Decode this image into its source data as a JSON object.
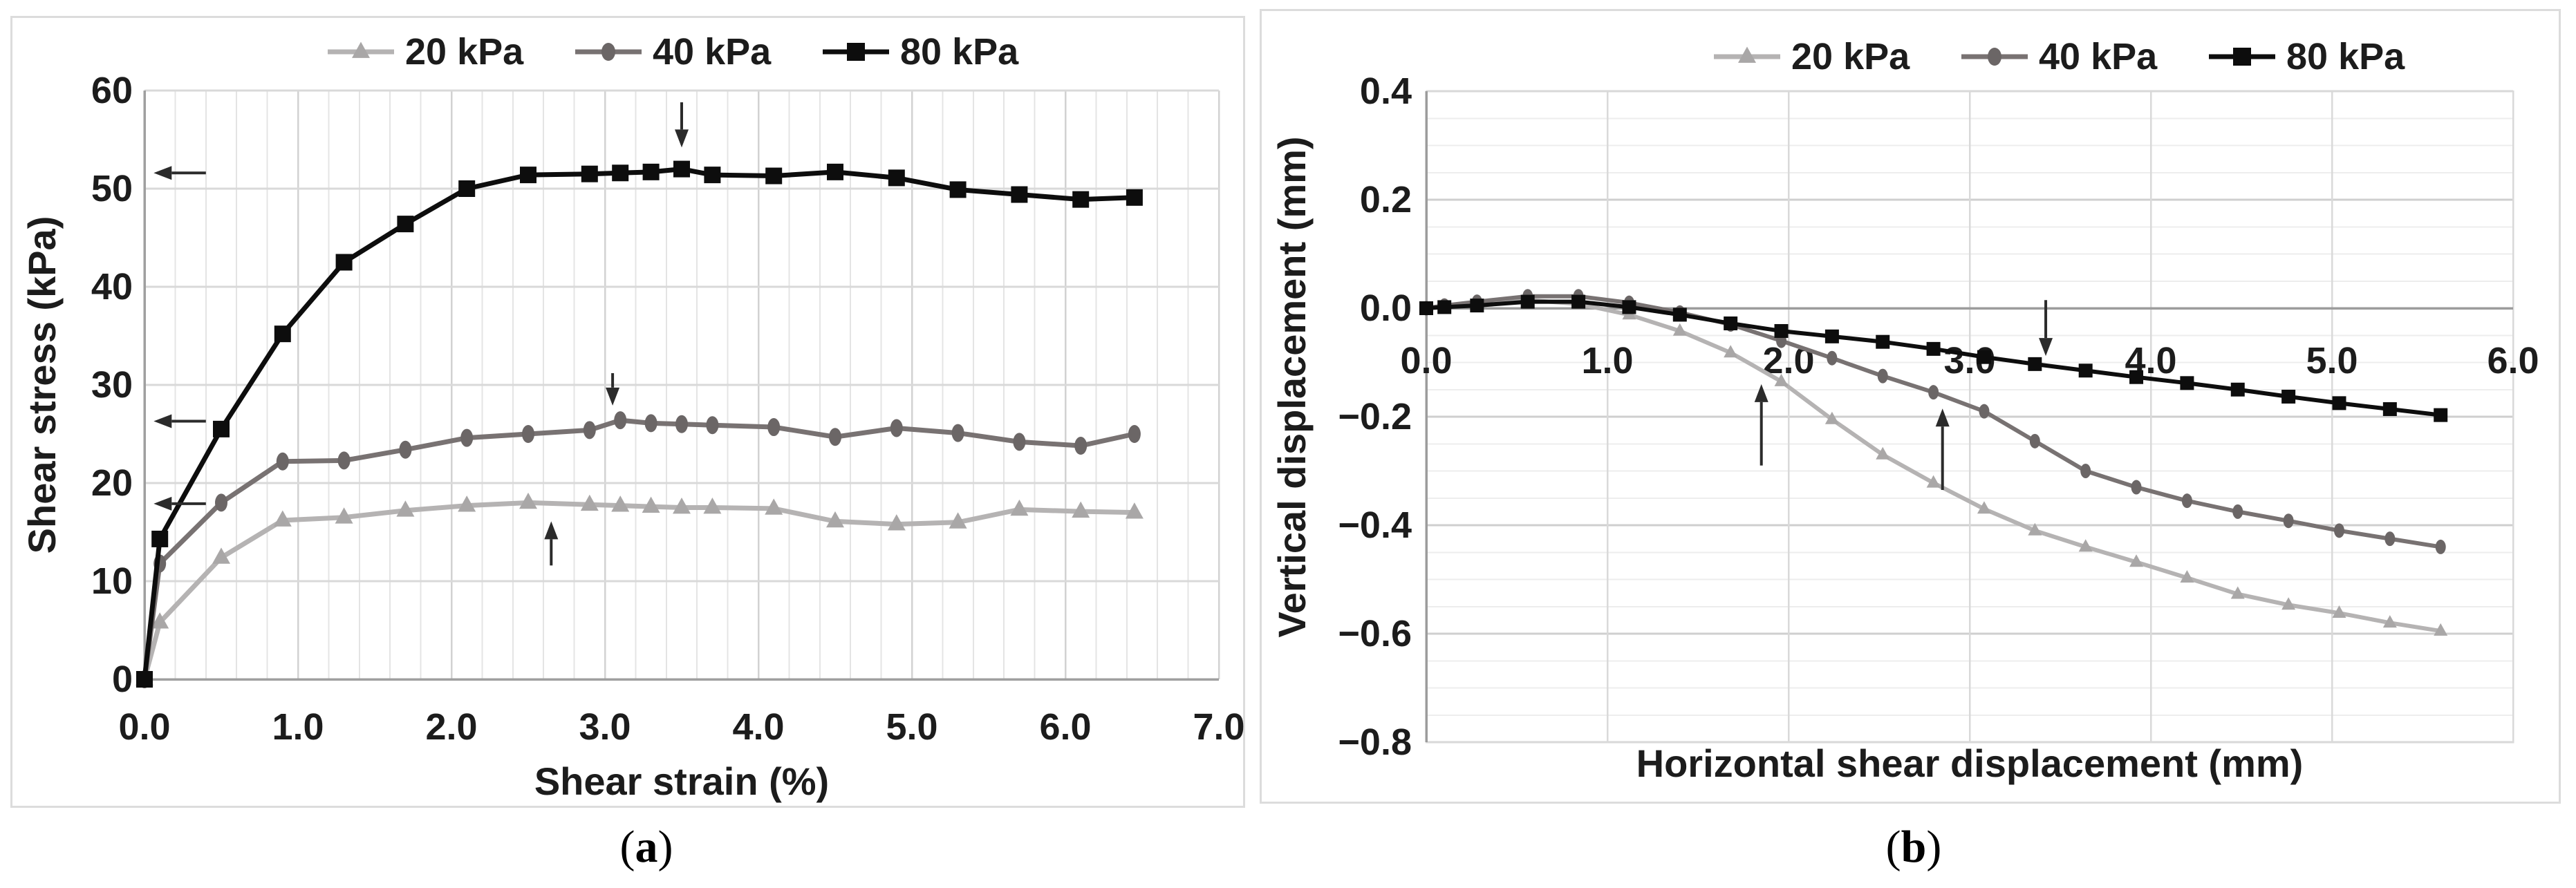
{
  "figure": {
    "captions": [
      "a",
      "b"
    ]
  },
  "chart_data": [
    {
      "id": "a",
      "type": "line",
      "title": "",
      "xlabel": "Shear strain (%)",
      "ylabel": "Shear stress (kPa)",
      "xlim": [
        0,
        7
      ],
      "ylim": [
        0,
        60
      ],
      "xtick_values": [
        0,
        1,
        2,
        3,
        4,
        5,
        6,
        7
      ],
      "xtick_labels": [
        "0.0",
        "1.0",
        "2.0",
        "3.0",
        "4.0",
        "5.0",
        "6.0",
        "7.0"
      ],
      "ytick_values": [
        0,
        10,
        20,
        30,
        40,
        50,
        60
      ],
      "ytick_labels": [
        "0",
        "10",
        "20",
        "30",
        "40",
        "50",
        "60"
      ],
      "x_minor_step": 0.2,
      "y_major_step": 10,
      "grid": true,
      "legend_position": "top",
      "x": [
        0,
        0.1,
        0.5,
        0.9,
        1.3,
        1.7,
        2.1,
        2.5,
        2.9,
        3.1,
        3.3,
        3.5,
        3.7,
        4.1,
        4.5,
        4.9,
        5.3,
        5.7,
        6.1,
        6.45
      ],
      "series": [
        {
          "name": "20 kPa",
          "marker": "triangle",
          "line_color": "#b5b3b3",
          "marker_color": "#a9a7a7",
          "y": [
            0,
            5.8,
            12.4,
            16.2,
            16.5,
            17.2,
            17.7,
            18.0,
            17.8,
            17.7,
            17.6,
            17.5,
            17.5,
            17.4,
            16.1,
            15.8,
            16.0,
            17.3,
            17.1,
            17.0
          ]
        },
        {
          "name": "40 kPa",
          "marker": "circle",
          "line_color": "#787272",
          "marker_color": "#6b6666",
          "y": [
            0,
            11.8,
            18.0,
            22.2,
            22.3,
            23.4,
            24.6,
            25.0,
            25.4,
            26.4,
            26.1,
            26.0,
            25.9,
            25.7,
            24.7,
            25.6,
            25.1,
            24.2,
            23.8,
            25.0
          ]
        },
        {
          "name": "80 kPa",
          "marker": "square",
          "line_color": "#0d0d0d",
          "marker_color": "#0d0d0d",
          "y": [
            0,
            14.3,
            25.5,
            35.2,
            42.5,
            46.4,
            50.0,
            51.4,
            51.5,
            51.6,
            51.7,
            52.0,
            51.4,
            51.3,
            51.7,
            51.1,
            49.9,
            49.4,
            48.9,
            49.1
          ]
        }
      ],
      "annotations": [
        {
          "name": "peak-arrow-80kpa-axis",
          "x1": 0.4,
          "y1": 51.6,
          "x2": 0.06,
          "y2": 51.6
        },
        {
          "name": "peak-arrow-40kpa-axis",
          "x1": 0.4,
          "y1": 26.3,
          "x2": 0.06,
          "y2": 26.3
        },
        {
          "name": "peak-arrow-20kpa-axis",
          "x1": 0.4,
          "y1": 17.9,
          "x2": 0.06,
          "y2": 17.9
        },
        {
          "name": "peak-arrow-80kpa-curve",
          "x1": 3.5,
          "y1": 58.8,
          "x2": 3.5,
          "y2": 54.2
        },
        {
          "name": "peak-arrow-40kpa-curve",
          "x1": 3.05,
          "y1": 31.2,
          "x2": 3.05,
          "y2": 27.9
        },
        {
          "name": "peak-arrow-20kpa-curve",
          "x1": 2.65,
          "y1": 11.6,
          "x2": 2.65,
          "y2": 16.1
        }
      ]
    },
    {
      "id": "b",
      "type": "line",
      "title": "",
      "xlabel": "Horizontal shear displacement (mm)",
      "ylabel": "Vertical displacement (mm)",
      "xlim": [
        0,
        6
      ],
      "ylim": [
        -0.8,
        0.4
      ],
      "xtick_values": [
        0,
        1,
        2,
        3,
        4,
        5,
        6
      ],
      "xtick_labels": [
        "0.0",
        "1.0",
        "2.0",
        "3.0",
        "4.0",
        "5.0",
        "6.0"
      ],
      "ytick_values": [
        0.4,
        0.2,
        0.0,
        -0.2,
        -0.4,
        -0.6,
        -0.8
      ],
      "ytick_labels": [
        "0.4",
        "0.2",
        "0.0",
        "−0.2",
        "−0.4",
        "−0.6",
        "−0.8"
      ],
      "y_minor_step": 0.05,
      "y_major_step": 0.2,
      "grid": true,
      "legend_position": "top",
      "x": [
        0,
        0.1,
        0.28,
        0.56,
        0.84,
        1.12,
        1.4,
        1.68,
        1.96,
        2.24,
        2.52,
        2.8,
        3.08,
        3.36,
        3.64,
        3.92,
        4.2,
        4.48,
        4.76,
        5.04,
        5.32,
        5.6
      ],
      "series": [
        {
          "name": "20 kPa",
          "marker": "triangle",
          "line_color": "#b5b3b3",
          "marker_color": "#a9a7a7",
          "y": [
            0,
            0.003,
            0.008,
            0.015,
            0.008,
            -0.012,
            -0.042,
            -0.082,
            -0.135,
            -0.205,
            -0.27,
            -0.322,
            -0.37,
            -0.41,
            -0.44,
            -0.468,
            -0.497,
            -0.527,
            -0.547,
            -0.562,
            -0.58,
            -0.595
          ]
        },
        {
          "name": "40 kPa",
          "marker": "circle",
          "line_color": "#787272",
          "marker_color": "#6b6666",
          "y": [
            0,
            0.005,
            0.012,
            0.022,
            0.022,
            0.01,
            -0.008,
            -0.03,
            -0.06,
            -0.092,
            -0.125,
            -0.155,
            -0.19,
            -0.245,
            -0.3,
            -0.33,
            -0.355,
            -0.375,
            -0.392,
            -0.41,
            -0.425,
            -0.44
          ]
        },
        {
          "name": "80 kPa",
          "marker": "square",
          "line_color": "#0d0d0d",
          "marker_color": "#0d0d0d",
          "y": [
            0,
            0.002,
            0.005,
            0.012,
            0.012,
            0.002,
            -0.012,
            -0.028,
            -0.042,
            -0.052,
            -0.062,
            -0.075,
            -0.09,
            -0.103,
            -0.115,
            -0.127,
            -0.138,
            -0.15,
            -0.163,
            -0.175,
            -0.186,
            -0.197
          ]
        }
      ],
      "annotations": [
        {
          "name": "dilation-arrow-20kpa",
          "x1": 1.85,
          "y1": -0.29,
          "x2": 1.85,
          "y2": -0.14
        },
        {
          "name": "dilation-arrow-40kpa",
          "x1": 2.85,
          "y1": -0.335,
          "x2": 2.85,
          "y2": -0.185
        },
        {
          "name": "dilation-arrow-80kpa",
          "x1": 3.42,
          "y1": 0.015,
          "x2": 3.42,
          "y2": -0.088
        }
      ]
    }
  ]
}
